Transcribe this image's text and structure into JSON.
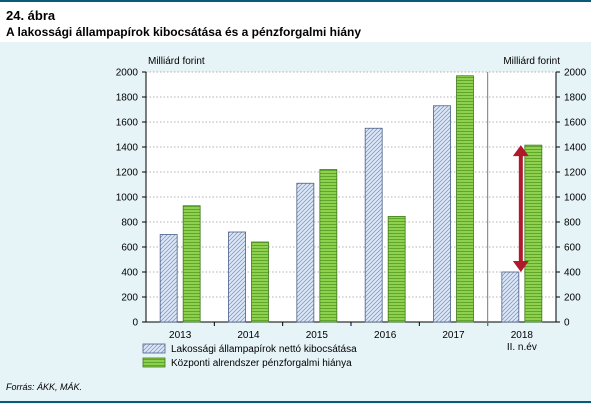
{
  "figure": {
    "number": "24. ábra",
    "title": "A lakossági állampapírok kibocsátása és a pénzforgalmi hiány",
    "source": "Forrás: ÁKK, MÁK."
  },
  "chart_data": {
    "type": "bar",
    "categories": [
      "2013",
      "2014",
      "2015",
      "2016",
      "2017",
      "2018"
    ],
    "category_sublabels": [
      "",
      "",
      "",
      "",
      "",
      "II. n.év"
    ],
    "series": [
      {
        "name": "Lakossági állampapírok nettó kibocsátása",
        "values": [
          700,
          720,
          1110,
          1550,
          1730,
          400
        ],
        "color": "#c9d9ef",
        "pattern": "hatched"
      },
      {
        "name": "Központi alrendszer pénzforgalmi hiánya",
        "values": [
          930,
          640,
          1220,
          845,
          1970,
          1415
        ],
        "color": "#8fd14f",
        "pattern": "stripes"
      }
    ],
    "ylabel_left": "Milliárd forint",
    "ylabel_right": "Milliárd forint",
    "ylim": [
      0,
      2000
    ],
    "yticks": [
      0,
      200,
      400,
      600,
      800,
      1000,
      1200,
      1400,
      1600,
      1800,
      2000
    ],
    "grid": true,
    "legend_position": "bottom-left",
    "annotation_arrow_color": "#b0192b"
  }
}
